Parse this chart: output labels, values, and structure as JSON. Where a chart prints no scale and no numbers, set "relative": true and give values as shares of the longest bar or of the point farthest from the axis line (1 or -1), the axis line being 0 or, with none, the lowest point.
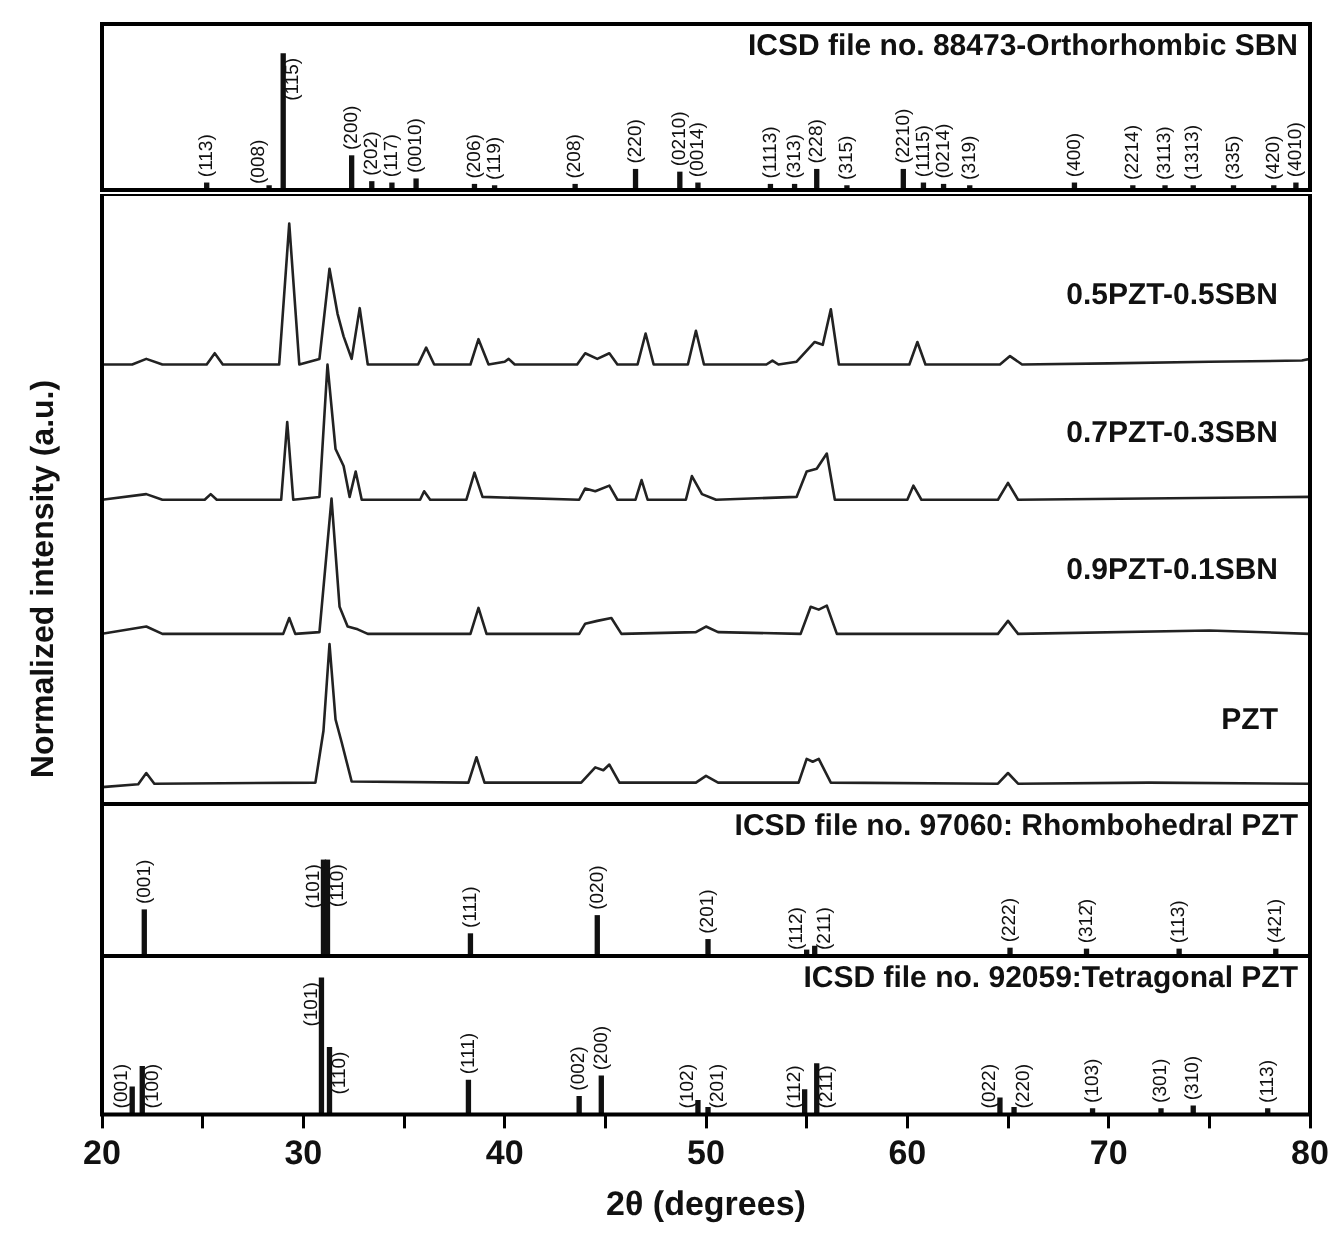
{
  "chart_data": [
    {
      "type": "bar",
      "title": "ICSD file no. 88473-Orthorhombic SBN",
      "relative": true,
      "xlim": [
        20,
        80
      ],
      "tick_labels": false,
      "color": "#111111",
      "x": [
        25.2,
        28.3,
        29.0,
        32.4,
        33.4,
        34.4,
        35.6,
        38.5,
        39.5,
        43.5,
        46.5,
        48.7,
        49.6,
        53.2,
        54.4,
        55.5,
        57.0,
        59.8,
        60.8,
        61.8,
        63.1,
        68.3,
        71.2,
        72.8,
        74.2,
        76.2,
        78.2,
        79.3
      ],
      "values": [
        0.05,
        0.03,
        1,
        0.25,
        0.06,
        0.05,
        0.08,
        0.04,
        0.03,
        0.04,
        0.15,
        0.13,
        0.05,
        0.04,
        0.04,
        0.15,
        0.03,
        0.15,
        0.05,
        0.04,
        0.03,
        0.05,
        0.03,
        0.03,
        0.03,
        0.03,
        0.03,
        0.05
      ],
      "annotations": [
        {
          "text": "(113)",
          "x": 25.2,
          "y": 0.05
        },
        {
          "text": "(008)",
          "x": 28.3,
          "y": 0.03
        },
        {
          "text": "(115)",
          "x": 29.0,
          "y": 1
        },
        {
          "text": "(200)",
          "x": 32.4,
          "y": 0.25
        },
        {
          "text": "(202)",
          "x": 33.4,
          "y": 0.06
        },
        {
          "text": "(117)",
          "x": 34.4,
          "y": 0.05
        },
        {
          "text": "(0010)",
          "x": 35.6,
          "y": 0.08
        },
        {
          "text": "(206)",
          "x": 38.5,
          "y": 0.04
        },
        {
          "text": "(119)",
          "x": 39.5,
          "y": 0.03
        },
        {
          "text": "(208)",
          "x": 43.5,
          "y": 0.04
        },
        {
          "text": "(220)",
          "x": 46.5,
          "y": 0.15
        },
        {
          "text": "(0210)",
          "x": 48.7,
          "y": 0.13
        },
        {
          "text": "(0014)",
          "x": 49.6,
          "y": 0.05
        },
        {
          "text": "(1113)",
          "x": 53.2,
          "y": 0.04
        },
        {
          "text": "(313)",
          "x": 54.4,
          "y": 0.04
        },
        {
          "text": "(228)",
          "x": 55.5,
          "y": 0.15
        },
        {
          "text": "(315)",
          "x": 57.0,
          "y": 0.03
        },
        {
          "text": "(2210)",
          "x": 59.8,
          "y": 0.15
        },
        {
          "text": "(1115)",
          "x": 60.8,
          "y": 0.05
        },
        {
          "text": "(0214)",
          "x": 61.8,
          "y": 0.04
        },
        {
          "text": "(319)",
          "x": 63.1,
          "y": 0.03
        },
        {
          "text": "(400)",
          "x": 68.3,
          "y": 0.05
        },
        {
          "text": "(2214)",
          "x": 71.2,
          "y": 0.03
        },
        {
          "text": "(3113)",
          "x": 72.8,
          "y": 0.03
        },
        {
          "text": "(1313)",
          "x": 74.2,
          "y": 0.03
        },
        {
          "text": "(335)",
          "x": 76.2,
          "y": 0.03
        },
        {
          "text": "(420)",
          "x": 78.2,
          "y": 0.03
        },
        {
          "text": "(4010)",
          "x": 79.3,
          "y": 0.05
        }
      ]
    },
    {
      "type": "line",
      "ylabel": "Normalized intensity (a.u.)",
      "relative": true,
      "xlim": [
        20,
        80
      ],
      "tick_labels": false,
      "series": [
        {
          "name": "0.5PZT-0.5SBN",
          "color": "#222222",
          "x": [
            20,
            21.5,
            22.2,
            23,
            25.2,
            25.6,
            26,
            28.8,
            29.3,
            29.8,
            30.8,
            31.3,
            31.7,
            32.0,
            32.4,
            32.8,
            33.2,
            35.7,
            36.1,
            36.5,
            38.3,
            38.7,
            39.2,
            40.0,
            40.2,
            40.5,
            43.6,
            44.0,
            44.6,
            45.2,
            45.6,
            46.6,
            47.0,
            47.4,
            49.1,
            49.5,
            49.9,
            53.0,
            53.3,
            53.6,
            54.5,
            55.4,
            55.8,
            56.2,
            56.6,
            60.1,
            60.5,
            60.9,
            64.6,
            65.1,
            65.7,
            70,
            75,
            79.6,
            80
          ],
          "values": [
            0.75,
            0.75,
            0.76,
            0.75,
            0.75,
            0.77,
            0.75,
            0.75,
            1.0,
            0.75,
            0.76,
            0.92,
            0.84,
            0.8,
            0.76,
            0.85,
            0.75,
            0.75,
            0.78,
            0.75,
            0.75,
            0.795,
            0.75,
            0.755,
            0.76,
            0.75,
            0.75,
            0.77,
            0.76,
            0.77,
            0.75,
            0.75,
            0.805,
            0.75,
            0.75,
            0.81,
            0.75,
            0.75,
            0.757,
            0.75,
            0.755,
            0.79,
            0.785,
            0.848,
            0.75,
            0.75,
            0.79,
            0.75,
            0.75,
            0.765,
            0.75,
            0.752,
            0.755,
            0.757,
            0.76
          ]
        },
        {
          "name": "0.7PZT-0.3SBN",
          "color": "#222222",
          "x": [
            20,
            22.2,
            23,
            25.1,
            25.4,
            25.7,
            28.9,
            29.2,
            29.5,
            30.8,
            31.2,
            31.6,
            32.0,
            32.3,
            32.6,
            32.9,
            35.8,
            36.0,
            36.3,
            38.1,
            38.5,
            38.9,
            43.7,
            44.0,
            44.5,
            45.2,
            45.6,
            46.5,
            46.8,
            47.1,
            49.0,
            49.3,
            49.8,
            50.5,
            54.5,
            55.0,
            55.5,
            56.0,
            56.4,
            60.0,
            60.3,
            60.7,
            64.5,
            65.0,
            65.5,
            80
          ],
          "values": [
            0.51,
            0.52,
            0.51,
            0.51,
            0.52,
            0.51,
            0.51,
            0.648,
            0.51,
            0.515,
            0.75,
            0.6,
            0.57,
            0.515,
            0.56,
            0.51,
            0.51,
            0.525,
            0.51,
            0.51,
            0.558,
            0.515,
            0.51,
            0.53,
            0.525,
            0.535,
            0.51,
            0.51,
            0.545,
            0.51,
            0.51,
            0.552,
            0.52,
            0.51,
            0.515,
            0.56,
            0.565,
            0.592,
            0.51,
            0.51,
            0.535,
            0.51,
            0.51,
            0.54,
            0.51,
            0.515
          ]
        },
        {
          "name": "0.9PZT-0.1SBN",
          "color": "#222222",
          "x": [
            20,
            22.2,
            23,
            29.0,
            29.3,
            29.6,
            30.8,
            31.4,
            31.8,
            32.2,
            32.7,
            33.2,
            38.3,
            38.7,
            39.1,
            43.7,
            44.0,
            44.6,
            45.3,
            45.8,
            49.5,
            50.0,
            50.6,
            54.7,
            55.2,
            55.6,
            56.0,
            56.5,
            64.5,
            65.0,
            65.5,
            75,
            80
          ],
          "values": [
            0.272,
            0.285,
            0.272,
            0.272,
            0.3,
            0.272,
            0.275,
            0.512,
            0.32,
            0.285,
            0.28,
            0.272,
            0.272,
            0.318,
            0.272,
            0.272,
            0.29,
            0.295,
            0.3,
            0.272,
            0.275,
            0.285,
            0.275,
            0.272,
            0.32,
            0.315,
            0.322,
            0.272,
            0.272,
            0.295,
            0.272,
            0.278,
            0.272
          ]
        },
        {
          "name": "PZT",
          "color": "#222222",
          "x": [
            20,
            21.8,
            22.2,
            22.6,
            30.6,
            31.0,
            31.3,
            31.6,
            31.9,
            32.4,
            38.2,
            38.6,
            39.0,
            43.8,
            44.5,
            44.9,
            45.2,
            45.7,
            49.5,
            50.0,
            50.6,
            54.6,
            55.0,
            55.3,
            55.6,
            56.2,
            64.5,
            65.0,
            65.5,
            72,
            80
          ],
          "values": [
            0,
            0.005,
            0.025,
            0.006,
            0.008,
            0.1,
            0.254,
            0.12,
            0.08,
            0.01,
            0.008,
            0.053,
            0.008,
            0.008,
            0.035,
            0.03,
            0.04,
            0.008,
            0.008,
            0.02,
            0.008,
            0.008,
            0.05,
            0.045,
            0.05,
            0.008,
            0.006,
            0.025,
            0.006,
            0.008,
            0.006
          ]
        }
      ]
    },
    {
      "type": "bar",
      "title": "ICSD file no. 97060: Rhombohedral PZT",
      "relative": true,
      "xlim": [
        20,
        80
      ],
      "tick_labels": false,
      "color": "#111111",
      "x": [
        22.1,
        31.0,
        31.2,
        38.3,
        44.6,
        50.1,
        55.0,
        55.4,
        65.1,
        68.9,
        73.5,
        78.3
      ],
      "values": [
        0.48,
        1,
        1,
        0.23,
        0.42,
        0.17,
        0.06,
        0.1,
        0.08,
        0.07,
        0.07,
        0.07
      ],
      "annotations": [
        {
          "text": "(001)",
          "x": 22.1,
          "y": 0.48
        },
        {
          "text": "(101)",
          "x": 31.0,
          "y": 1
        },
        {
          "text": "(110)",
          "x": 31.2,
          "y": 1
        },
        {
          "text": "(111)",
          "x": 38.3,
          "y": 0.23
        },
        {
          "text": "(020)",
          "x": 44.6,
          "y": 0.42
        },
        {
          "text": "(201)",
          "x": 50.1,
          "y": 0.17
        },
        {
          "text": "(112)",
          "x": 55.0,
          "y": 0.06
        },
        {
          "text": "(211)",
          "x": 55.4,
          "y": 0.1
        },
        {
          "text": "(222)",
          "x": 65.1,
          "y": 0.08
        },
        {
          "text": "(312̄)",
          "x": 68.9,
          "y": 0.07
        },
        {
          "text": "(113)",
          "x": 73.5,
          "y": 0.07
        },
        {
          "text": "(421)",
          "x": 78.3,
          "y": 0.07
        }
      ]
    },
    {
      "type": "bar",
      "title": "ICSD file no. 92059:Tetragonal PZT",
      "relative": true,
      "xlim": [
        20,
        80
      ],
      "xticks": [
        20,
        {
          "value": 25,
          "label": null
        },
        30,
        {
          "value": 35,
          "label": null
        },
        40,
        {
          "value": 45,
          "label": null
        },
        50,
        {
          "value": 55,
          "label": null
        },
        60,
        {
          "value": 65,
          "label": null
        },
        70,
        {
          "value": 75,
          "label": null
        },
        80
      ],
      "xlabel": "2θ (degrees)",
      "color": "#111111",
      "x": [
        21.5,
        22.0,
        30.9,
        31.3,
        38.2,
        43.7,
        44.8,
        49.6,
        50.1,
        54.9,
        55.5,
        64.6,
        65.3,
        69.2,
        72.6,
        74.2,
        77.9
      ],
      "values": [
        0.2,
        0.35,
        1,
        0.49,
        0.25,
        0.13,
        0.28,
        0.1,
        0.05,
        0.18,
        0.37,
        0.12,
        0.05,
        0.04,
        0.04,
        0.06,
        0.04
      ],
      "annotations": [
        {
          "text": "(001)",
          "x": 21.5,
          "y": 0.2
        },
        {
          "text": "(100)",
          "x": 22.0,
          "y": 0.35
        },
        {
          "text": "(101)",
          "x": 30.9,
          "y": 1
        },
        {
          "text": "(110)",
          "x": 31.3,
          "y": 0.49
        },
        {
          "text": "(111)",
          "x": 38.2,
          "y": 0.25
        },
        {
          "text": "(002)",
          "x": 43.7,
          "y": 0.13
        },
        {
          "text": "(200)",
          "x": 44.8,
          "y": 0.28
        },
        {
          "text": "(102)",
          "x": 49.6,
          "y": 0.1
        },
        {
          "text": "(201)",
          "x": 50.1,
          "y": 0.05
        },
        {
          "text": "(112)",
          "x": 54.9,
          "y": 0.18
        },
        {
          "text": "(211)",
          "x": 55.5,
          "y": 0.37
        },
        {
          "text": "(022)",
          "x": 64.6,
          "y": 0.12
        },
        {
          "text": "(220)",
          "x": 65.3,
          "y": 0.05
        },
        {
          "text": "(103)",
          "x": 69.2,
          "y": 0.04
        },
        {
          "text": "(301)",
          "x": 72.6,
          "y": 0.04
        },
        {
          "text": "(310)",
          "x": 74.2,
          "y": 0.06
        },
        {
          "text": "(113)",
          "x": 77.9,
          "y": 0.04
        }
      ]
    }
  ]
}
